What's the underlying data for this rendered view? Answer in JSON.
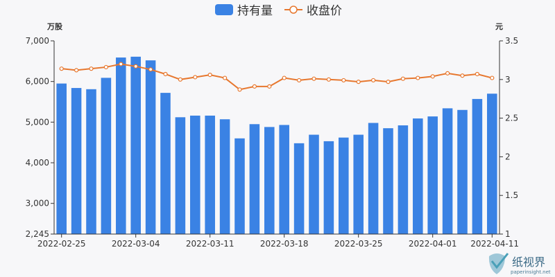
{
  "legend": {
    "holding_label": "持有量",
    "price_label": "收盘价"
  },
  "axes": {
    "left_unit": "万股",
    "right_unit": "元"
  },
  "watermark": {
    "brand": "纸视界",
    "site": "paperinsight.net"
  },
  "colors": {
    "bar": "#3a82e4",
    "line": "#e7772e",
    "axis": "#333333",
    "background": "#f7f7f9"
  },
  "chart_data": {
    "type": "bar",
    "x": [
      "2022-02-25",
      "2022-02-28",
      "2022-03-01",
      "2022-03-02",
      "2022-03-03",
      "2022-03-04",
      "2022-03-07",
      "2022-03-08",
      "2022-03-09",
      "2022-03-10",
      "2022-03-11",
      "2022-03-14",
      "2022-03-15",
      "2022-03-16",
      "2022-03-17",
      "2022-03-18",
      "2022-03-21",
      "2022-03-22",
      "2022-03-23",
      "2022-03-24",
      "2022-03-25",
      "2022-03-28",
      "2022-03-29",
      "2022-03-30",
      "2022-03-31",
      "2022-04-01",
      "2022-04-06",
      "2022-04-07",
      "2022-04-08",
      "2022-04-11"
    ],
    "x_tick_labels": [
      "2022-02-25",
      "2022-03-04",
      "2022-03-11",
      "2022-03-18",
      "2022-03-25",
      "2022-04-01",
      "2022-04-11"
    ],
    "series": [
      {
        "name": "持有量",
        "type": "bar",
        "axis": "left",
        "values": [
          5950,
          5840,
          5810,
          6090,
          6590,
          6610,
          6520,
          5720,
          5120,
          5160,
          5160,
          5070,
          4600,
          4950,
          4880,
          4930,
          4480,
          4690,
          4530,
          4620,
          4690,
          4980,
          4850,
          4920,
          5090,
          5140,
          5340,
          5300,
          5570,
          5700
        ]
      },
      {
        "name": "收盘价",
        "type": "line",
        "axis": "right",
        "values": [
          3.14,
          3.12,
          3.14,
          3.16,
          3.2,
          3.17,
          3.13,
          3.07,
          3.0,
          3.03,
          3.06,
          3.02,
          2.87,
          2.91,
          2.91,
          3.02,
          2.99,
          3.01,
          3.0,
          2.99,
          2.97,
          2.99,
          2.97,
          3.01,
          3.02,
          3.04,
          3.08,
          3.05,
          3.07,
          3.02
        ]
      }
    ],
    "left_axis": {
      "min": 2245,
      "max": 7000,
      "ticks": [
        2245,
        3000,
        4000,
        5000,
        6000,
        7000
      ],
      "tick_labels": [
        "2,245",
        "3,000",
        "4,000",
        "5,000",
        "6,000",
        "7,000"
      ]
    },
    "right_axis": {
      "min": 1,
      "max": 3.5,
      "ticks": [
        1,
        1.5,
        2,
        2.5,
        3,
        3.5
      ],
      "tick_labels": [
        "1",
        "1.5",
        "2",
        "2.5",
        "3",
        "3.5"
      ]
    },
    "grid": false,
    "legend_position": "top-center"
  }
}
